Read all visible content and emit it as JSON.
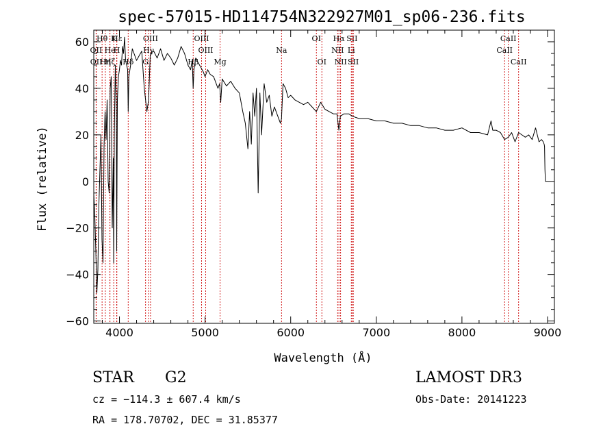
{
  "chart_data": {
    "type": "line",
    "title": "spec-57015-HD114754N322927M01_sp06-236.fits",
    "xlabel": "Wavelength (Å)",
    "ylabel": "Flux (relative)",
    "xlim": [
      3700,
      9080
    ],
    "ylim": [
      -61,
      65
    ],
    "xticks": [
      4000,
      5000,
      6000,
      7000,
      8000,
      9000
    ],
    "yticks": [
      -60,
      -40,
      -20,
      0,
      20,
      40,
      60
    ],
    "grid": false,
    "series": [
      {
        "x": [
          3700,
          3712,
          3724,
          3736,
          3748,
          3760,
          3772,
          3784,
          3796,
          3808,
          3820,
          3832,
          3844,
          3856,
          3868,
          3880,
          3892,
          3904,
          3916,
          3928,
          3933,
          3940,
          3952,
          3964,
          3968,
          3976,
          3988,
          4000,
          4012,
          4024,
          4036,
          4048,
          4060,
          4072,
          4084,
          4096,
          4102,
          4110,
          4130,
          4150,
          4170,
          4200,
          4230,
          4260,
          4290,
          4320,
          4340,
          4360,
          4400,
          4440,
          4480,
          4520,
          4560,
          4600,
          4640,
          4680,
          4720,
          4760,
          4800,
          4830,
          4850,
          4861,
          4870,
          4890,
          4920,
          4950,
          4980,
          5000,
          5030,
          5060,
          5100,
          5150,
          5170,
          5183,
          5200,
          5250,
          5300,
          5350,
          5400,
          5440,
          5470,
          5500,
          5520,
          5540,
          5560,
          5580,
          5600,
          5620,
          5640,
          5660,
          5690,
          5720,
          5750,
          5780,
          5810,
          5850,
          5880,
          5893,
          5910,
          5940,
          5970,
          6000,
          6050,
          6100,
          6150,
          6200,
          6250,
          6300,
          6350,
          6400,
          6450,
          6500,
          6540,
          6563,
          6580,
          6620,
          6680,
          6720,
          6800,
          6900,
          7000,
          7100,
          7200,
          7300,
          7400,
          7500,
          7600,
          7700,
          7800,
          7900,
          8000,
          8100,
          8200,
          8300,
          8340,
          8360,
          8400,
          8450,
          8498,
          8542,
          8580,
          8620,
          8662,
          8700,
          8740,
          8780,
          8820,
          8860,
          8900,
          8930,
          8950,
          8960,
          8965,
          8970,
          8975,
          9000
        ],
        "y": [
          -5,
          -15,
          -30,
          -48,
          -38,
          -10,
          5,
          20,
          -25,
          -35,
          15,
          30,
          18,
          35,
          0,
          -5,
          40,
          45,
          -20,
          10,
          -35,
          20,
          50,
          30,
          -30,
          35,
          45,
          48,
          52,
          50,
          58,
          55,
          62,
          52,
          50,
          48,
          30,
          45,
          50,
          57,
          55,
          52,
          54,
          56,
          40,
          30,
          35,
          55,
          56,
          53,
          57,
          52,
          55,
          53,
          50,
          53,
          58,
          55,
          50,
          48,
          52,
          40,
          48,
          53,
          51,
          49,
          47,
          45,
          48,
          46,
          45,
          40,
          42,
          34,
          44,
          41,
          43,
          40,
          38,
          30,
          25,
          14,
          30,
          16,
          38,
          28,
          40,
          -5,
          38,
          20,
          42,
          34,
          37,
          28,
          32,
          28,
          25,
          27,
          42,
          40,
          36,
          37,
          35,
          34,
          33,
          34,
          32,
          30,
          34,
          31,
          30,
          29,
          29,
          22,
          28,
          29,
          29,
          28,
          27,
          27,
          26,
          26,
          25,
          25,
          24,
          24,
          23,
          23,
          22,
          22,
          23,
          21,
          21,
          20,
          26,
          22,
          22,
          21,
          18,
          19,
          21,
          17,
          21,
          20,
          19,
          20,
          18,
          23,
          17,
          18,
          17,
          16,
          15,
          5,
          0,
          0
        ]
      }
    ],
    "line_markers": [
      {
        "label": "Hθ",
        "x": 3797,
        "row": 1
      },
      {
        "label": "OII",
        "x": 3727,
        "row": 2
      },
      {
        "label": "OII",
        "x": 3729,
        "row": 3
      },
      {
        "label": "He",
        "x": 3889,
        "row": 2
      },
      {
        "label": "Hη",
        "x": 3835,
        "row": 3
      },
      {
        "label": "K",
        "x": 3933,
        "row": 1
      },
      {
        "label": "H",
        "x": 3968,
        "row": 2
      },
      {
        "label": "Hζ",
        "x": 3889,
        "row": 3
      },
      {
        "label": "Hε",
        "x": 3970,
        "row": 1
      },
      {
        "label": "Hδ",
        "x": 4102,
        "row": 3
      },
      {
        "label": "OIII",
        "x": 4363,
        "row": 1
      },
      {
        "label": "G",
        "x": 4305,
        "row": 3
      },
      {
        "label": "Hγ",
        "x": 4340,
        "row": 2
      },
      {
        "label": "OIII",
        "x": 4959,
        "row": 1
      },
      {
        "label": "OIII",
        "x": 5007,
        "row": 2
      },
      {
        "label": "Hβ",
        "x": 4861,
        "row": 3
      },
      {
        "label": "Mg",
        "x": 5175,
        "row": 3
      },
      {
        "label": "Na",
        "x": 5893,
        "row": 2
      },
      {
        "label": "OI",
        "x": 6300,
        "row": 1
      },
      {
        "label": "OI",
        "x": 6364,
        "row": 3
      },
      {
        "label": "Hα",
        "x": 6563,
        "row": 1
      },
      {
        "label": "SII",
        "x": 6717,
        "row": 1
      },
      {
        "label": "NII",
        "x": 6548,
        "row": 2
      },
      {
        "label": "Li",
        "x": 6708,
        "row": 2
      },
      {
        "label": "NII",
        "x": 6583,
        "row": 3
      },
      {
        "label": "SII",
        "x": 6731,
        "row": 3
      },
      {
        "label": "CaII",
        "x": 8542,
        "row": 1
      },
      {
        "label": "CaII",
        "x": 8498,
        "row": 2
      },
      {
        "label": "CaII",
        "x": 8662,
        "row": 3
      }
    ]
  },
  "info": {
    "object_class": "STAR",
    "subclass": "G2",
    "cz": "cz = −114.3 ± 607.4 km/s",
    "radec": "RA = 178.70702, DEC =  31.85377",
    "survey": "LAMOST DR3",
    "obs_date": "Obs-Date: 20141223"
  },
  "colors": {
    "spectrum": "#000000",
    "marker_line": "#cc0000",
    "axes": "#000000"
  }
}
